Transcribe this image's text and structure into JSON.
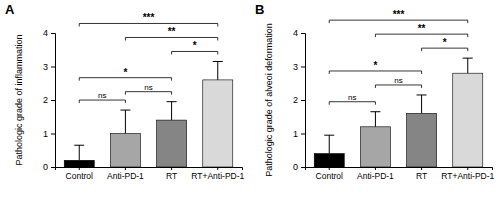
{
  "chart_data": [
    {
      "type": "bar",
      "title": "A",
      "y_label": "Pathologic grade of inflammation",
      "categories": [
        "Control",
        "Anti-PD-1",
        "RT",
        "RT+Anti-PD-1"
      ],
      "values": [
        0.2,
        1.0,
        1.4,
        2.6
      ],
      "errors": [
        0.45,
        0.7,
        0.55,
        0.55
      ],
      "colors": [
        "#000000",
        "#a6a6a6",
        "#858585",
        "#d9d9d9"
      ],
      "ylim": [
        0,
        4
      ],
      "yticks": [
        0,
        1,
        2,
        3,
        4
      ],
      "comparisons": [
        {
          "from": 0,
          "to": 1,
          "label": "ns"
        },
        {
          "from": 1,
          "to": 2,
          "label": "ns"
        },
        {
          "from": 0,
          "to": 2,
          "label": "*"
        },
        {
          "from": 2,
          "to": 3,
          "label": "*"
        },
        {
          "from": 1,
          "to": 3,
          "label": "**"
        },
        {
          "from": 0,
          "to": 3,
          "label": "***"
        }
      ]
    },
    {
      "type": "bar",
      "title": "B",
      "y_label": "Pathologic grade of alveoi deformation",
      "categories": [
        "Control",
        "Anti-PD-1",
        "RT",
        "RT+Anti-PD-1"
      ],
      "values": [
        0.4,
        1.2,
        1.6,
        2.8
      ],
      "errors": [
        0.55,
        0.45,
        0.55,
        0.45
      ],
      "colors": [
        "#000000",
        "#a6a6a6",
        "#858585",
        "#d9d9d9"
      ],
      "ylim": [
        0,
        4
      ],
      "yticks": [
        0,
        1,
        2,
        3,
        4
      ],
      "comparisons": [
        {
          "from": 0,
          "to": 1,
          "label": "ns"
        },
        {
          "from": 1,
          "to": 2,
          "label": "ns"
        },
        {
          "from": 0,
          "to": 2,
          "label": "*"
        },
        {
          "from": 2,
          "to": 3,
          "label": "*"
        },
        {
          "from": 1,
          "to": 3,
          "label": "**"
        },
        {
          "from": 0,
          "to": 3,
          "label": "***"
        }
      ]
    }
  ]
}
